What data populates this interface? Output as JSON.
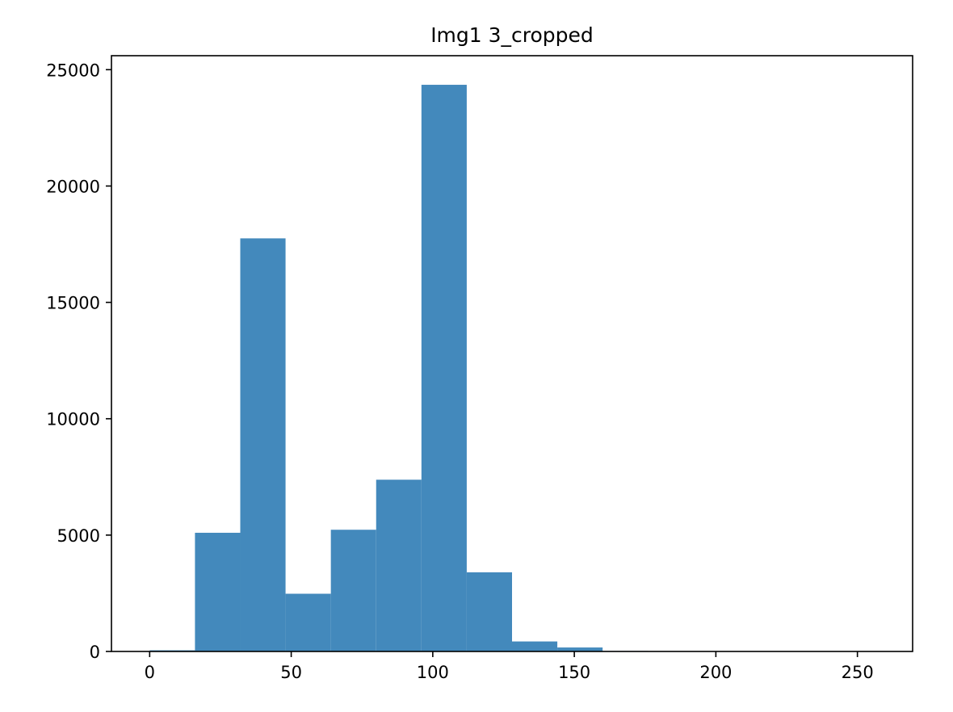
{
  "chart_data": {
    "type": "bar",
    "title": "Img1 3_cropped",
    "xlabel": "",
    "ylabel": "",
    "bin_edges": [
      0,
      16,
      32,
      48,
      64,
      80,
      96,
      112,
      128,
      144,
      160,
      176,
      192,
      208,
      224,
      240,
      256
    ],
    "values": [
      50,
      5100,
      17750,
      2480,
      5230,
      7380,
      24350,
      3400,
      430,
      170,
      20,
      0,
      0,
      0,
      0,
      0
    ],
    "xlim": [
      -13.5,
      269.5
    ],
    "ylim": [
      0,
      25600
    ],
    "xticks": [
      0,
      50,
      100,
      150,
      200,
      250
    ],
    "yticks": [
      0,
      5000,
      10000,
      15000,
      20000,
      25000
    ],
    "bar_color": "#4389bc",
    "grid": false,
    "legend": "none"
  }
}
